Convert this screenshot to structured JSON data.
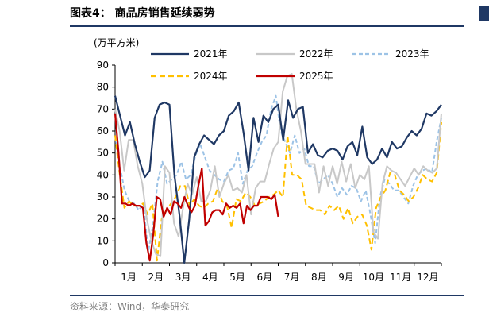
{
  "figure": {
    "title": "图表4：  商品房销售延续弱势",
    "source": "资料来源：Wind，华泰研究"
  },
  "chart_data": {
    "type": "line",
    "title": "",
    "ylabel": "(万平方米)",
    "xlabel": "",
    "ylim": [
      0,
      90
    ],
    "yticks": [
      "0",
      "10",
      "20",
      "30",
      "40",
      "50",
      "60",
      "70",
      "80",
      "90"
    ],
    "xticks": [
      "1月",
      "2月",
      "3月",
      "4月",
      "5月",
      "6月",
      "7月",
      "8月",
      "9月",
      "10月",
      "11月",
      "12月"
    ],
    "x_unit": "week of year (1-52)",
    "legend_position": "top",
    "series": [
      {
        "name": "2021年",
        "color": "#1f3864",
        "dash": "solid",
        "values": [
          76,
          67,
          58,
          64,
          54,
          46,
          39,
          42,
          66,
          72,
          73,
          72,
          40,
          22,
          0,
          20,
          48,
          54,
          58,
          56,
          54,
          58,
          60,
          67,
          69,
          73,
          59,
          42,
          66,
          55,
          67,
          64,
          70,
          72,
          56,
          74,
          66,
          70,
          71,
          50,
          54,
          49,
          48,
          51,
          52,
          51,
          47,
          53,
          55,
          49,
          62,
          48,
          45,
          47,
          52,
          48,
          55,
          52,
          53,
          57,
          60,
          58,
          61,
          68,
          67,
          69,
          72
        ]
      },
      {
        "name": "2022年",
        "color": "#c8c8c8",
        "dash": "solid",
        "values": [
          70,
          60,
          42,
          56,
          56,
          44,
          36,
          20,
          10,
          4,
          3,
          44,
          41,
          18,
          12,
          25,
          36,
          31,
          39,
          28,
          28,
          33,
          44,
          30,
          36,
          40,
          33,
          34,
          32,
          40,
          22,
          34,
          37,
          37,
          45,
          52,
          55,
          78,
          85,
          86,
          70,
          60,
          45,
          45,
          45,
          32,
          44,
          35,
          44,
          36,
          46,
          37,
          45,
          34,
          40,
          38,
          44,
          14,
          11,
          36,
          44,
          42,
          41,
          38,
          35,
          39,
          43,
          40,
          44,
          42,
          41,
          43,
          68
        ]
      },
      {
        "name": "2023年",
        "color": "#9dc3e6",
        "dash": "5,3",
        "values": [
          58,
          44,
          33,
          28,
          27,
          24,
          27,
          5,
          17,
          37,
          46,
          36,
          38,
          40,
          46,
          38,
          40,
          49,
          54,
          48,
          42,
          40,
          38,
          37,
          42,
          43,
          50,
          36,
          42,
          44,
          50,
          55,
          58,
          70,
          76,
          60,
          55,
          50,
          58,
          50,
          52,
          44,
          44,
          36,
          38,
          40,
          36,
          30,
          34,
          31,
          35,
          34,
          28,
          33,
          22,
          9,
          30,
          38,
          36,
          33,
          33,
          30,
          27,
          35,
          40,
          42,
          43,
          41,
          55,
          66
        ]
      },
      {
        "name": "2024年",
        "color": "#ffc000",
        "dash": "7,4",
        "values": [
          58,
          40,
          25,
          28,
          26,
          26,
          27,
          22,
          27,
          1,
          20,
          24,
          27,
          30,
          35,
          35,
          26,
          29,
          26,
          25,
          27,
          28,
          34,
          28,
          26,
          16,
          29,
          28,
          32,
          30,
          26,
          27,
          28,
          30,
          31,
          33,
          30,
          58,
          40,
          40,
          38,
          26,
          25,
          24,
          24,
          22,
          26,
          24,
          26,
          20,
          25,
          18,
          21,
          22,
          17,
          6,
          25,
          30,
          33,
          41,
          40,
          33,
          31,
          28,
          30,
          34,
          40,
          38,
          37,
          41,
          64
        ]
      },
      {
        "name": "2025年",
        "color": "#c00000",
        "dash": "solid",
        "values": [
          68,
          50,
          27,
          27,
          26,
          27,
          26,
          26,
          25,
          9,
          1,
          13,
          30,
          29,
          21,
          25,
          22,
          28,
          27,
          25,
          30,
          26,
          23,
          26,
          35,
          43,
          17,
          19,
          23,
          24,
          24,
          22,
          27,
          25,
          26,
          25,
          27,
          18,
          26,
          24,
          26,
          26,
          30,
          30,
          30,
          29,
          31,
          21
        ]
      }
    ]
  }
}
